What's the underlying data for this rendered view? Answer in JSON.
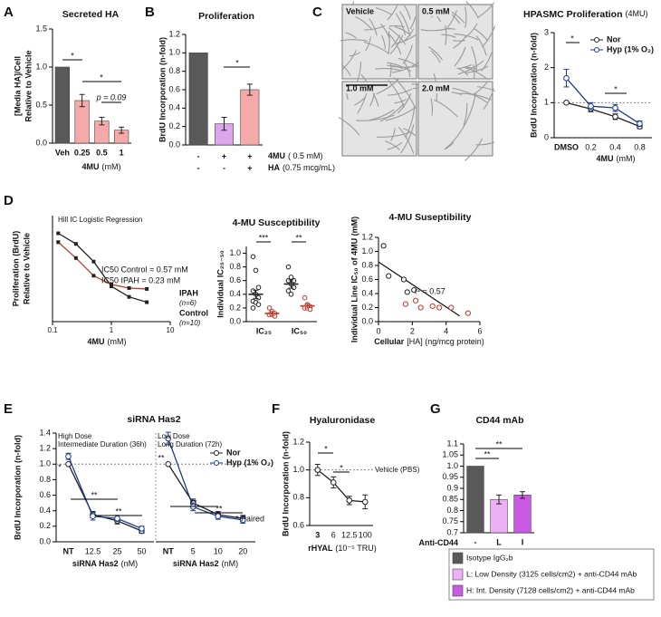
{
  "chart_data": [
    {
      "panel": "A",
      "type": "bar",
      "title": "Secreted HA",
      "ylabel": [
        "[Media HA]/Cell",
        "Relative to Vehicle"
      ],
      "categories": [
        "Veh",
        "0.25",
        "0.5",
        "1"
      ],
      "values": [
        1.0,
        0.56,
        0.29,
        0.17
      ],
      "errors": [
        null,
        0.08,
        0.05,
        0.04
      ],
      "colors": [
        "#595959",
        "#f6a9a9",
        "#f6a9a9",
        "#f6a9a9"
      ],
      "ylim": [
        0,
        1.5
      ],
      "yticks": [
        {
          "value": 0,
          "label": "0.0"
        },
        0.5,
        {
          "value": 1,
          "label": "1.0"
        },
        1.5
      ],
      "xlabel": "4MU",
      "xunit": "(mM)",
      "annotations": [
        "*",
        "*",
        "p = 0.09"
      ]
    },
    {
      "panel": "B",
      "type": "bar",
      "title": "Proliferation",
      "ylabel": [
        "BrdU Incorporation (n-fold)"
      ],
      "values": [
        1.0,
        0.23,
        0.6
      ],
      "errors": [
        null,
        0.07,
        0.06
      ],
      "colors": [
        "#595959",
        "#dca6ee",
        "#f6a9a9"
      ],
      "ylim": [
        0,
        1.2
      ],
      "yticks": [
        {
          "value": 0,
          "label": "0.0"
        },
        0.2,
        0.4,
        0.6,
        0.8,
        {
          "value": 1,
          "label": "1.0"
        },
        1.2
      ],
      "rows": [
        {
          "label": "4MU",
          "unit": "( 0.5 mM)",
          "signs": [
            "-",
            "+",
            "+"
          ]
        },
        {
          "label": "HA",
          "unit": "(0.75 mcg/mL)",
          "signs": [
            "-",
            "-",
            "+"
          ]
        }
      ],
      "annotations": [
        "*"
      ]
    },
    {
      "panel": "C",
      "type": "image",
      "labels": [
        "Vehicle",
        "0.5 mM",
        "1.0 mM",
        "2.0 mM"
      ]
    },
    {
      "type": "line",
      "title": "HPASMC Proliferation",
      "title_note": "(4MU)",
      "ylabel": [
        "BrdU Incorporation (n-fold)"
      ],
      "categories": [
        "DMSO",
        "0.2",
        "0.4",
        "0.8"
      ],
      "series": [
        {
          "name": "Nor",
          "color": "#222222",
          "values": [
            1.0,
            0.82,
            0.6,
            0.32
          ],
          "errors": [
            null,
            0.08,
            0.08,
            0.06
          ]
        },
        {
          "name": "Hyp (1% O₂)",
          "color": "#1f3a93",
          "values": [
            1.7,
            0.9,
            0.85,
            0.4
          ],
          "errors": [
            0.25,
            0.1,
            0.1,
            0.08
          ]
        }
      ],
      "ylim": [
        0,
        3
      ],
      "yticks": [
        0,
        1,
        2,
        3
      ],
      "hline": 1,
      "xlabel": "4MU",
      "xunit": "(mM)",
      "annotations": [
        "*",
        "*"
      ]
    },
    {
      "panel": "D",
      "type": "line",
      "xscale": "log",
      "title": "Hill IC Logistic Regression",
      "ylabel": [
        "Proliferation (BrdU)",
        "Relative to Vehicle"
      ],
      "xlim": [
        0.1,
        10
      ],
      "xticks": [
        0.1,
        1,
        10
      ],
      "ylim": [
        0,
        1.2
      ],
      "series": [
        {
          "name": "Control",
          "n_label": "(n=10)",
          "color": "#222222",
          "x": [
            0.125,
            0.25,
            0.5,
            1,
            2,
            4
          ],
          "values": [
            1.0,
            0.88,
            0.68,
            0.4,
            0.28,
            0.22
          ]
        },
        {
          "name": "IPAH",
          "n_label": "(n=6)",
          "color": "#c0392b",
          "x": [
            0.125,
            0.25,
            0.5,
            1,
            2,
            4
          ],
          "values": [
            0.9,
            0.72,
            0.52,
            0.42,
            0.38,
            0.37
          ]
        }
      ],
      "xlabel": "4MU",
      "xunit": "(mM)",
      "annotations": [
        "IC50 Control = 0.57 mM",
        "IC50 IPAH = 0.23 mM"
      ]
    },
    {
      "type": "dot",
      "title": "4-MU Susceptibility",
      "ylabel": [
        "Individual IC₂₅₋₅₀"
      ],
      "categories": [
        "IC₂₅",
        "IC₅₀"
      ],
      "ylim": [
        0,
        1.1
      ],
      "yticks": [
        {
          "value": 0,
          "label": "0.0"
        },
        0.2,
        0.4,
        0.6,
        0.8,
        {
          "value": 1,
          "label": "1.0"
        }
      ],
      "series": [
        {
          "color": "#222222",
          "points": [
            [
              0.95,
              0.75,
              0.5,
              0.45,
              0.4,
              0.35,
              0.3,
              0.28,
              0.25,
              0.2
            ],
            [
              0.8,
              0.65,
              0.6,
              0.6,
              0.55,
              0.5,
              0.45,
              0.4
            ]
          ],
          "values": [
            0.4,
            0.55
          ],
          "errors": [
            0.06,
            0.06
          ]
        },
        {
          "color": "#c0392b",
          "points": [
            [
              0.2,
              0.15,
              0.12,
              0.1,
              0.1,
              0.08
            ],
            [
              0.35,
              0.25,
              0.22,
              0.2,
              0.2,
              0.18
            ]
          ],
          "values": [
            0.12,
            0.23
          ],
          "errors": [
            0.03,
            0.03
          ]
        }
      ],
      "annotations": [
        "***",
        "**"
      ]
    },
    {
      "type": "scatter",
      "title": "4-MU Suseptibility",
      "ylabel": [
        "Individual Line IC₅₀ of 4MU (mM)"
      ],
      "xlabel": "Cellular",
      "xunit": "[HA] (ng/mcg protein)",
      "xlim": [
        0,
        6
      ],
      "xticks": [
        0,
        2,
        4,
        6
      ],
      "ylim": [
        0,
        1.2
      ],
      "yticks": [
        {
          "value": 0,
          "label": "0.0"
        },
        0.2,
        0.4,
        0.6,
        0.8,
        {
          "value": 1,
          "label": "1.0"
        },
        1.2
      ],
      "series": [
        {
          "color": "#222222",
          "x": [
            0.3,
            0.6,
            1.5,
            1.7,
            2.1
          ],
          "values": [
            1.08,
            0.65,
            0.6,
            0.42,
            0.45
          ]
        },
        {
          "color": "#c0392b",
          "x": [
            1.6,
            2.2,
            2.5,
            3.2,
            3.6,
            4.3,
            5.3
          ],
          "values": [
            0.25,
            0.3,
            0.2,
            0.22,
            0.2,
            0.2,
            0.12
          ]
        }
      ],
      "trendline": [
        [
          0,
          0.85
        ],
        [
          4.8,
          0.08
        ]
      ],
      "annotations": [
        "r² = 0.57"
      ]
    },
    {
      "panel": "E",
      "type": "line",
      "title": "siRNA Has2",
      "ylabel": [
        "BrdU Incorporation (n-fold)"
      ],
      "ylim": [
        0,
        1.4
      ],
      "yticks": [
        {
          "value": 0,
          "label": "0.0"
        },
        0.2,
        0.4,
        0.6,
        0.8,
        {
          "value": 1,
          "label": "1.0"
        },
        1.2,
        1.4
      ],
      "hline": 1,
      "legend": [
        {
          "name": "Nor",
          "color": "#222222"
        },
        {
          "name": "Hyp (1% O₂)",
          "color": "#1f3a93"
        }
      ],
      "subplots": [
        {
          "notes": [
            "High Dose",
            "Intermediate Duration (36h)"
          ],
          "categories": [
            "NT",
            "12.5",
            "25",
            "50"
          ],
          "xlabel": "siRNA Has2",
          "xunit": "(nM)",
          "series": [
            {
              "values": [
                1.0,
                0.35,
                0.27,
                0.14
              ],
              "errors": [
                null,
                0.04,
                0.04,
                0.03
              ]
            },
            {
              "values": [
                1.1,
                0.33,
                0.3,
                0.17
              ],
              "errors": [
                0.04,
                0.05,
                0.04,
                0.03
              ]
            }
          ]
        },
        {
          "notes": [
            "Low Dose",
            "Long Duration (72h)"
          ],
          "categories": [
            "NT",
            "5",
            "10",
            "20"
          ],
          "xlabel": "siRNA Has2",
          "xunit": "(nM)",
          "series": [
            {
              "values": [
                1.0,
                0.5,
                0.35,
                0.3
              ],
              "errors": [
                null,
                0.05,
                0.04,
                0.04
              ]
            },
            {
              "values": [
                1.33,
                0.45,
                0.33,
                0.28
              ],
              "errors": [
                0.08,
                0.05,
                0.04,
                0.04
              ]
            }
          ]
        }
      ],
      "annotations": [
        "*",
        "**",
        "**",
        "**",
        "**",
        "**",
        "*",
        "Paired"
      ]
    },
    {
      "panel": "F",
      "type": "line",
      "title": "Hyaluronidase",
      "ylabel": [
        "BrdU Incorporation (n-fold)"
      ],
      "categories": [
        "3",
        "6",
        "12.5",
        "100"
      ],
      "series": [
        {
          "color": "#222222",
          "values": [
            1.0,
            0.91,
            0.78,
            0.77
          ],
          "errors": [
            0.04,
            0.04,
            0.03,
            0.05
          ]
        }
      ],
      "ylim": [
        0.6,
        1.2
      ],
      "yticks": [
        0.6,
        0.8,
        {
          "value": 1,
          "label": "1.0"
        },
        1.2
      ],
      "hline": 1,
      "hline_label": "Vehicle (PBS)",
      "xlabel": "rHYAL",
      "xunit": "(10⁻⁵ TRU)",
      "annotations": [
        "*",
        "*"
      ]
    },
    {
      "panel": "G",
      "type": "bar",
      "title": "CD44 mAb",
      "categories": [
        "-",
        "L",
        "I"
      ],
      "xlabel": "Anti-CD44",
      "values": [
        1.0,
        0.85,
        0.87
      ],
      "errors": [
        null,
        0.02,
        0.015
      ],
      "colors": [
        "#595959",
        "#eeb0f4",
        "#c95be2"
      ],
      "ylim": [
        0.7,
        1.1
      ],
      "yticks": [
        0.7,
        0.75,
        0.8,
        0.85,
        0.9,
        0.95,
        {
          "value": 1,
          "label": "1.0"
        },
        1.05,
        1.1
      ],
      "legend": [
        {
          "label": "Isotype IgG₂b",
          "color": "#595959"
        },
        {
          "label": "L: Low Density (3125 cells/cm2) + anti-CD44 mAb",
          "color": "#eeb0f4"
        },
        {
          "label": "H: Int. Density (7128 cells/cm2) + anti-CD44 mAb",
          "color": "#c95be2"
        }
      ],
      "annotations": [
        "**",
        "**"
      ]
    }
  ]
}
